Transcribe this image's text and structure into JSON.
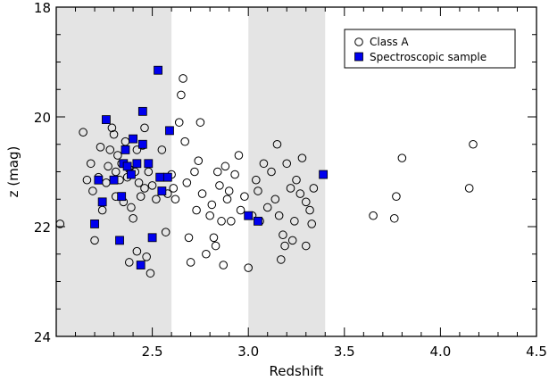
{
  "chart_data": {
    "type": "scatter",
    "xlabel": "Redshift",
    "ylabel": "z (mag)",
    "xlim": [
      2.0,
      4.5
    ],
    "ylim": [
      24,
      18
    ],
    "y_inverted": true,
    "grid": false,
    "legend_placement": "top-right",
    "x_ticks": [
      {
        "value": 2.5,
        "label": "2.5"
      },
      {
        "value": 3.0,
        "label": "3.0"
      },
      {
        "value": 3.5,
        "label": "3.5"
      },
      {
        "value": 4.0,
        "label": "4.0"
      },
      {
        "value": 4.5,
        "label": "4.5"
      }
    ],
    "y_ticks": [
      {
        "value": 18,
        "label": "18"
      },
      {
        "value": 20,
        "label": "20"
      },
      {
        "value": 22,
        "label": "22"
      },
      {
        "value": 24,
        "label": "24"
      }
    ],
    "shaded_bands": [
      {
        "x0": 2.0,
        "x1": 2.6,
        "color": "#e4e4e4"
      },
      {
        "x0": 3.0,
        "x1": 3.4,
        "color": "#e4e4e4"
      }
    ],
    "series": [
      {
        "name": "Class A",
        "marker": "open-circle",
        "color": "#000000",
        "points": [
          [
            2.02,
            21.95
          ],
          [
            2.14,
            20.28
          ],
          [
            2.16,
            21.15
          ],
          [
            2.18,
            20.85
          ],
          [
            2.19,
            21.35
          ],
          [
            2.2,
            22.25
          ],
          [
            2.22,
            21.1
          ],
          [
            2.23,
            20.55
          ],
          [
            2.24,
            21.7
          ],
          [
            2.26,
            21.2
          ],
          [
            2.27,
            20.9
          ],
          [
            2.28,
            20.6
          ],
          [
            2.29,
            20.2
          ],
          [
            2.3,
            20.32
          ],
          [
            2.31,
            21.0
          ],
          [
            2.31,
            21.45
          ],
          [
            2.32,
            20.7
          ],
          [
            2.33,
            21.15
          ],
          [
            2.34,
            20.85
          ],
          [
            2.35,
            21.55
          ],
          [
            2.36,
            20.45
          ],
          [
            2.37,
            21.1
          ],
          [
            2.38,
            20.95
          ],
          [
            2.39,
            21.65
          ],
          [
            2.4,
            21.85
          ],
          [
            2.41,
            21.0
          ],
          [
            2.42,
            20.6
          ],
          [
            2.43,
            21.2
          ],
          [
            2.44,
            21.45
          ],
          [
            2.45,
            20.52
          ],
          [
            2.46,
            20.2
          ],
          [
            2.46,
            21.3
          ],
          [
            2.47,
            22.55
          ],
          [
            2.48,
            21.0
          ],
          [
            2.49,
            22.85
          ],
          [
            2.5,
            21.25
          ],
          [
            2.38,
            22.65
          ],
          [
            2.42,
            22.45
          ],
          [
            2.52,
            21.5
          ],
          [
            2.55,
            20.6
          ],
          [
            2.57,
            22.1
          ],
          [
            2.58,
            21.4
          ],
          [
            2.6,
            21.05
          ],
          [
            2.61,
            21.3
          ],
          [
            2.62,
            21.5
          ],
          [
            2.64,
            20.1
          ],
          [
            2.65,
            19.6
          ],
          [
            2.66,
            19.3
          ],
          [
            2.67,
            20.45
          ],
          [
            2.68,
            21.2
          ],
          [
            2.69,
            22.2
          ],
          [
            2.7,
            22.65
          ],
          [
            2.72,
            21.0
          ],
          [
            2.73,
            21.7
          ],
          [
            2.74,
            20.8
          ],
          [
            2.75,
            20.1
          ],
          [
            2.76,
            21.4
          ],
          [
            2.78,
            22.5
          ],
          [
            2.8,
            21.8
          ],
          [
            2.81,
            21.6
          ],
          [
            2.82,
            22.2
          ],
          [
            2.83,
            22.35
          ],
          [
            2.84,
            21.0
          ],
          [
            2.85,
            21.25
          ],
          [
            2.86,
            21.9
          ],
          [
            2.87,
            22.7
          ],
          [
            2.88,
            20.9
          ],
          [
            2.89,
            21.5
          ],
          [
            2.9,
            21.35
          ],
          [
            2.91,
            21.9
          ],
          [
            2.93,
            21.05
          ],
          [
            2.95,
            20.7
          ],
          [
            2.96,
            21.7
          ],
          [
            2.98,
            21.45
          ],
          [
            3.0,
            22.75
          ],
          [
            3.02,
            21.8
          ],
          [
            3.04,
            21.15
          ],
          [
            3.05,
            21.35
          ],
          [
            3.06,
            21.9
          ],
          [
            3.08,
            20.85
          ],
          [
            3.1,
            21.65
          ],
          [
            3.12,
            21.0
          ],
          [
            3.14,
            21.5
          ],
          [
            3.15,
            20.5
          ],
          [
            3.16,
            21.8
          ],
          [
            3.17,
            22.6
          ],
          [
            3.18,
            22.15
          ],
          [
            3.19,
            22.35
          ],
          [
            3.2,
            20.85
          ],
          [
            3.22,
            21.3
          ],
          [
            3.23,
            22.25
          ],
          [
            3.24,
            21.9
          ],
          [
            3.25,
            21.15
          ],
          [
            3.27,
            21.4
          ],
          [
            3.28,
            20.75
          ],
          [
            3.3,
            21.55
          ],
          [
            3.3,
            22.35
          ],
          [
            3.32,
            21.7
          ],
          [
            3.33,
            21.95
          ],
          [
            3.34,
            21.3
          ],
          [
            3.65,
            21.8
          ],
          [
            3.76,
            21.85
          ],
          [
            3.77,
            21.45
          ],
          [
            3.8,
            20.75
          ],
          [
            4.15,
            21.3
          ],
          [
            4.17,
            20.5
          ]
        ]
      },
      {
        "name": "Spectroscopic sample",
        "marker": "filled-square",
        "color": "#0000ee",
        "points": [
          [
            2.2,
            21.95
          ],
          [
            2.22,
            21.15
          ],
          [
            2.24,
            21.55
          ],
          [
            2.26,
            20.05
          ],
          [
            2.3,
            21.15
          ],
          [
            2.33,
            22.25
          ],
          [
            2.34,
            21.45
          ],
          [
            2.35,
            20.85
          ],
          [
            2.36,
            20.6
          ],
          [
            2.37,
            20.9
          ],
          [
            2.39,
            21.05
          ],
          [
            2.4,
            20.4
          ],
          [
            2.42,
            20.85
          ],
          [
            2.44,
            22.7
          ],
          [
            2.45,
            19.9
          ],
          [
            2.45,
            20.5
          ],
          [
            2.48,
            20.85
          ],
          [
            2.5,
            22.2
          ],
          [
            2.53,
            19.15
          ],
          [
            2.54,
            21.1
          ],
          [
            2.55,
            21.35
          ],
          [
            2.58,
            21.1
          ],
          [
            2.59,
            20.25
          ],
          [
            3.0,
            21.8
          ],
          [
            3.05,
            21.9
          ],
          [
            3.39,
            21.05
          ]
        ]
      }
    ]
  }
}
